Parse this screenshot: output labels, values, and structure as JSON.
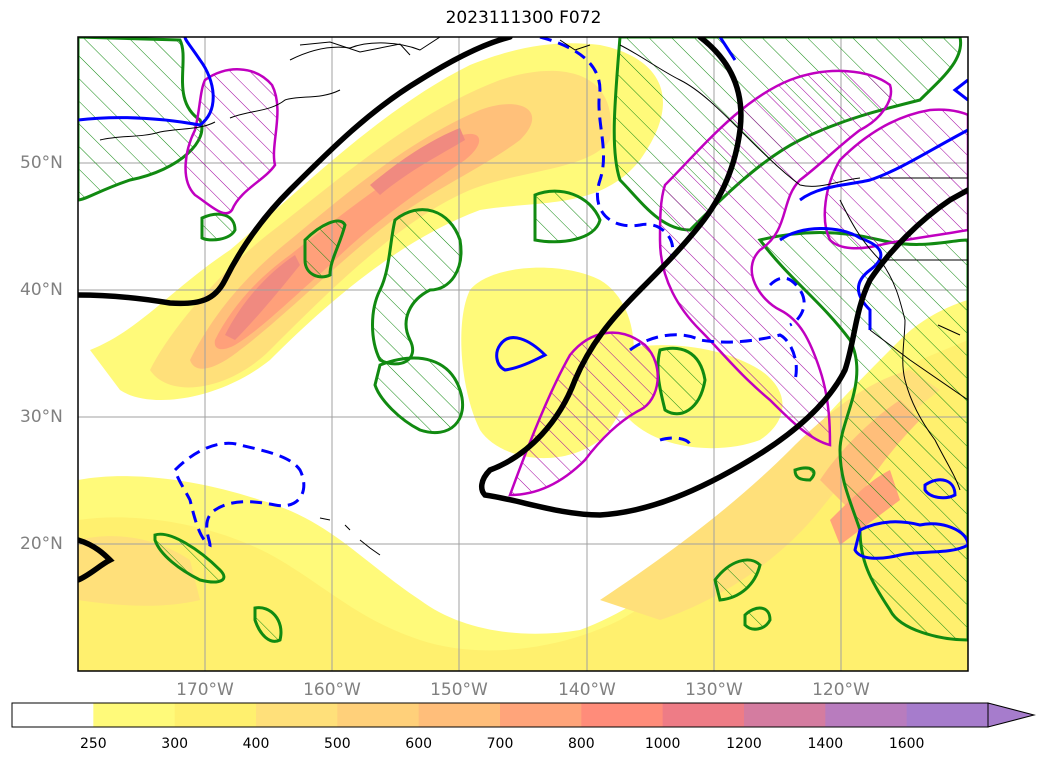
{
  "title": "2023111300 F072",
  "latitude_labels": [
    "50°N",
    "40°N",
    "30°N",
    "20°N"
  ],
  "longitude_labels": [
    "170°W",
    "160°W",
    "150°W",
    "140°W",
    "130°W",
    "120°W"
  ],
  "colorbar": {
    "ticks": [
      "250",
      "300",
      "400",
      "500",
      "600",
      "700",
      "800",
      "1000",
      "1200",
      "1400",
      "1600"
    ],
    "colors": [
      "#ffffff",
      "#fffa7a",
      "#fff06e",
      "#ffe07a",
      "#ffd07a",
      "#ffbe7a",
      "#ffa47a",
      "#ff8c7a",
      "#ee7c86",
      "#d47ca0",
      "#b87cbe",
      "#a67ccc"
    ],
    "extend": "max"
  },
  "colors": {
    "frame": "#000000",
    "grid": "#a0a0a0",
    "trough_contour": "#000000",
    "green_contour": "#118a11",
    "magenta_contour": "#c000c0",
    "blue_contour": "#0000ff"
  }
}
